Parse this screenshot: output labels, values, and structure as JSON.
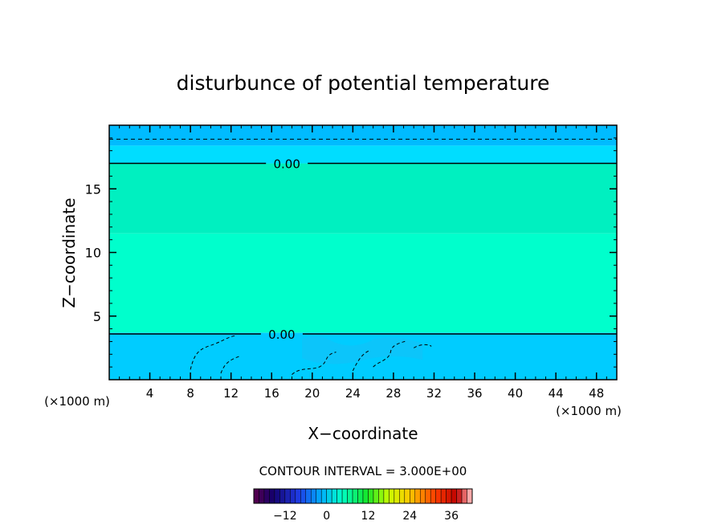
{
  "chart_data": {
    "type": "heatmap",
    "title": "disturbunce of potential temperature",
    "xlabel": "X−coordinate",
    "ylabel": "Z−coordinate",
    "x_unit_label_left": "(×1000 m)",
    "x_unit_label_right": "(×1000 m)",
    "xlim": [
      0,
      50
    ],
    "ylim": [
      0,
      20
    ],
    "x_ticks": [
      4,
      8,
      12,
      16,
      20,
      24,
      28,
      32,
      36,
      40,
      44,
      48
    ],
    "y_ticks": [
      5,
      10,
      15
    ],
    "bands": [
      {
        "z0": 0,
        "z1": 3.7,
        "color": "#00ccff"
      },
      {
        "z0": 3.7,
        "z1": 11.5,
        "color": "#00ffcc"
      },
      {
        "z0": 11.5,
        "z1": 17.0,
        "color": "#00f0c0"
      },
      {
        "z0": 17.0,
        "z1": 18.4,
        "color": "#00ddff"
      },
      {
        "z0": 18.4,
        "z1": 20,
        "color": "#00bbff"
      }
    ],
    "contours": [
      {
        "level": 0,
        "z": 17.0,
        "style": "solid",
        "label": "0.00",
        "label_x": 17.5
      },
      {
        "level": 0,
        "z": 3.6,
        "style": "solid",
        "label": "0.00",
        "label_x": 17.0
      },
      {
        "level": -3,
        "z": 18.9,
        "style": "dashed",
        "label": ""
      }
    ],
    "contour_interval_text": "CONTOUR INTERVAL = 3.000E+00",
    "colorbar": {
      "min": -21,
      "max": 42,
      "step": 1.5,
      "tick_values": [
        -12,
        0,
        12,
        24,
        36
      ],
      "tick_labels": [
        "−12",
        "0",
        "12",
        "24",
        "36"
      ]
    }
  }
}
